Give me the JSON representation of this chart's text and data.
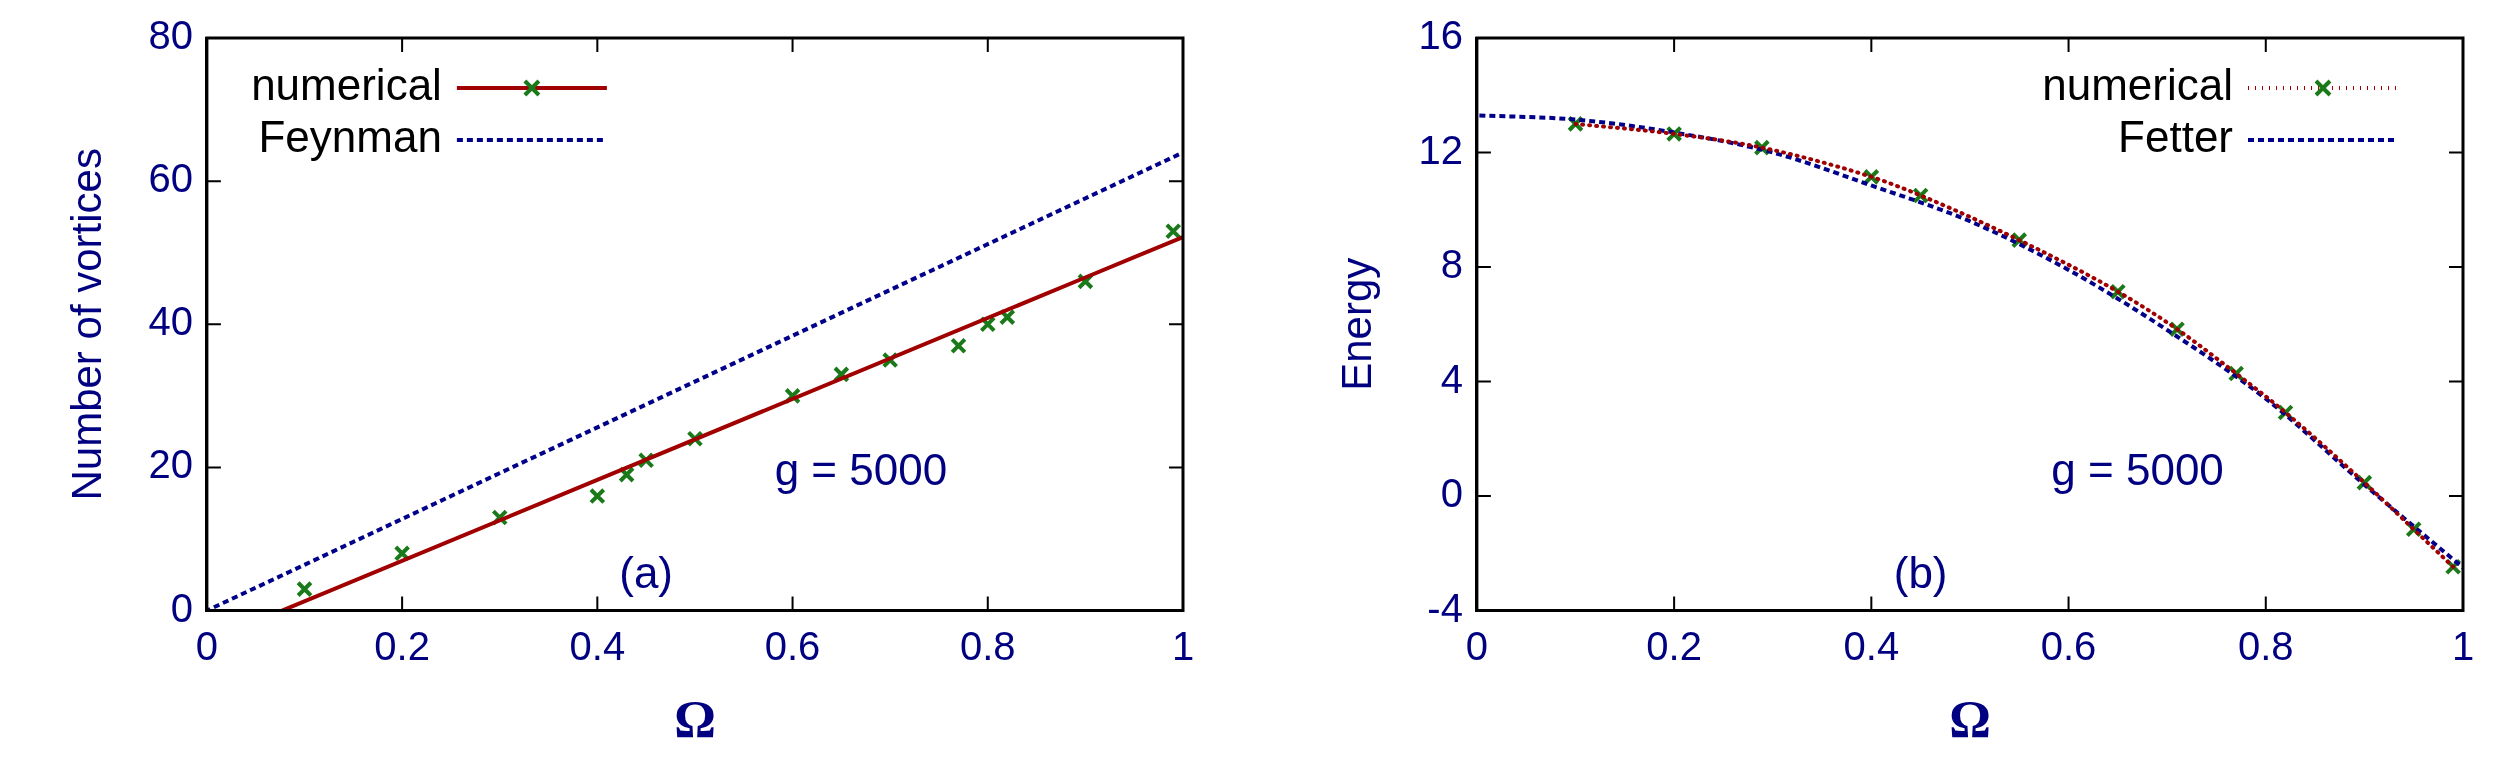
{
  "chart_data": [
    {
      "type": "scatter",
      "xlabel": "Ω",
      "ylabel": "Number of vortices",
      "xlim": [
        0,
        1
      ],
      "xticks": [
        0,
        0.2,
        0.4,
        0.6,
        0.8,
        1
      ],
      "ylim": [
        0,
        80
      ],
      "yticks": [
        0,
        20,
        40,
        60,
        80
      ],
      "grid": false,
      "legend": "top left",
      "annotations": [
        "g = 5000",
        "(a)"
      ],
      "series": [
        {
          "name": "numerical",
          "marker": "cross",
          "color": "#1a7a1a",
          "x": [
            0.1,
            0.2,
            0.3,
            0.4,
            0.43,
            0.45,
            0.5,
            0.6,
            0.65,
            0.7,
            0.77,
            0.8,
            0.82,
            0.9,
            0.99
          ],
          "values": [
            3,
            8,
            13,
            16,
            19,
            21,
            24,
            30,
            33,
            35,
            37,
            40,
            41,
            46,
            53
          ]
        },
        {
          "type": "line",
          "marker": "none",
          "color": "#a00000",
          "line_style": "solid",
          "x": [
            0.077,
            1
          ],
          "values": [
            0,
            52.2
          ]
        },
        {
          "name": "Feynman",
          "type": "line",
          "marker": "none",
          "color": "#00008b",
          "line_style": "dashed",
          "x": [
            0,
            1
          ],
          "values": [
            0,
            64
          ]
        }
      ]
    },
    {
      "type": "scatter",
      "xlabel": "Ω",
      "ylabel": "Energy",
      "xlim": [
        0,
        1
      ],
      "xticks": [
        0,
        0.2,
        0.4,
        0.6,
        0.8,
        1
      ],
      "ylim": [
        -4,
        16
      ],
      "yticks": [
        -4,
        0,
        4,
        8,
        12,
        16
      ],
      "grid": false,
      "legend": "top right",
      "annotations": [
        "g = 5000",
        "(b)"
      ],
      "series": [
        {
          "name": "numerical",
          "marker": "cross",
          "color": "#1a7a1a",
          "x": [
            0.1,
            0.2,
            0.289,
            0.4,
            0.45,
            0.55,
            0.65,
            0.71,
            0.77,
            0.82,
            0.9,
            0.95,
            0.99
          ],
          "values": [
            13.0,
            12.65,
            12.17,
            11.15,
            10.5,
            8.94,
            7.14,
            5.83,
            4.28,
            2.92,
            0.47,
            -1.16,
            -2.47
          ]
        },
        {
          "type": "line",
          "marker": "none",
          "color": "#a00000",
          "line_style": "dotted",
          "x": [
            0.1,
            0.2,
            0.289,
            0.4,
            0.45,
            0.55,
            0.65,
            0.71,
            0.77,
            0.82,
            0.9,
            0.95,
            0.99
          ],
          "values": [
            13.0,
            12.65,
            12.17,
            11.15,
            10.5,
            8.94,
            7.14,
            5.83,
            4.28,
            2.92,
            0.47,
            -1.16,
            -2.47
          ]
        },
        {
          "name": "Fetter",
          "type": "line",
          "marker": "none",
          "color": "#00008b",
          "line_style": "dashed",
          "x": [
            0,
            0.1,
            0.2,
            0.3,
            0.4,
            0.5,
            0.6,
            0.7,
            0.8,
            0.9,
            1
          ],
          "values": [
            13.3,
            13.15,
            12.7,
            12.0,
            10.85,
            9.6,
            7.9,
            5.8,
            3.4,
            0.4,
            -2.5
          ]
        }
      ]
    }
  ]
}
